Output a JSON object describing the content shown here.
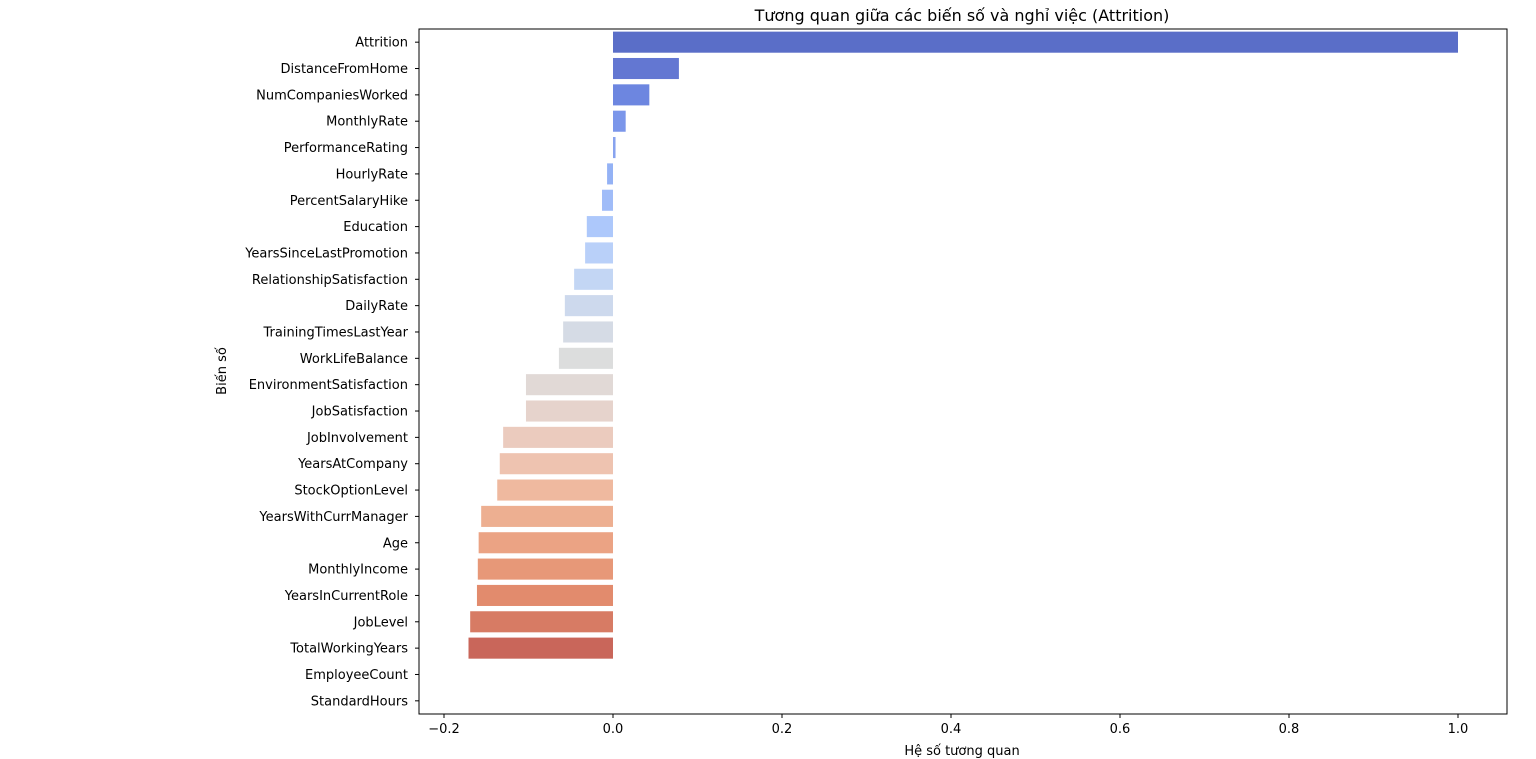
{
  "chart_data": {
    "type": "bar",
    "orientation": "horizontal",
    "title": "Tương quan giữa các biến số và nghỉ việc (Attrition)",
    "xlabel": "Hệ số tương quan",
    "ylabel": "Biến số",
    "xlim": [
      -0.229,
      1.058
    ],
    "xticks": [
      -0.2,
      0.0,
      0.2,
      0.4,
      0.6,
      0.8,
      1.0
    ],
    "xtick_labels": [
      "−0.2",
      "0.0",
      "0.2",
      "0.4",
      "0.6",
      "0.8",
      "1.0"
    ],
    "grid": false,
    "categories": [
      "Attrition",
      "DistanceFromHome",
      "NumCompaniesWorked",
      "MonthlyRate",
      "PerformanceRating",
      "HourlyRate",
      "PercentSalaryHike",
      "Education",
      "YearsSinceLastPromotion",
      "RelationshipSatisfaction",
      "DailyRate",
      "TrainingTimesLastYear",
      "WorkLifeBalance",
      "EnvironmentSatisfaction",
      "JobSatisfaction",
      "JobInvolvement",
      "YearsAtCompany",
      "StockOptionLevel",
      "YearsWithCurrManager",
      "Age",
      "MonthlyIncome",
      "YearsInCurrentRole",
      "JobLevel",
      "TotalWorkingYears",
      "EmployeeCount",
      "StandardHours"
    ],
    "values": [
      1.0,
      0.078,
      0.043,
      0.015,
      0.003,
      -0.007,
      -0.013,
      -0.031,
      -0.033,
      -0.046,
      -0.057,
      -0.059,
      -0.064,
      -0.103,
      -0.103,
      -0.13,
      -0.134,
      -0.137,
      -0.156,
      -0.159,
      -0.16,
      -0.161,
      -0.169,
      -0.171,
      null,
      null
    ],
    "colors": [
      "#5a6ec8",
      "#6377d2",
      "#6d86e0",
      "#7b96ea",
      "#88a3ef",
      "#94b2f5",
      "#a0bcf8",
      "#adc8fb",
      "#b9d0f9",
      "#c3d6f4",
      "#cdd9ed",
      "#d5dbe5",
      "#dcdddd",
      "#e1d9d6",
      "#e6d3cc",
      "#ebcbbe",
      "#eec3b0",
      "#efb99f",
      "#edaf91",
      "#eba384",
      "#e79878",
      "#e28b6d",
      "#d77b64",
      "#c9665a",
      "#c05a52",
      "#b84d4a"
    ]
  }
}
